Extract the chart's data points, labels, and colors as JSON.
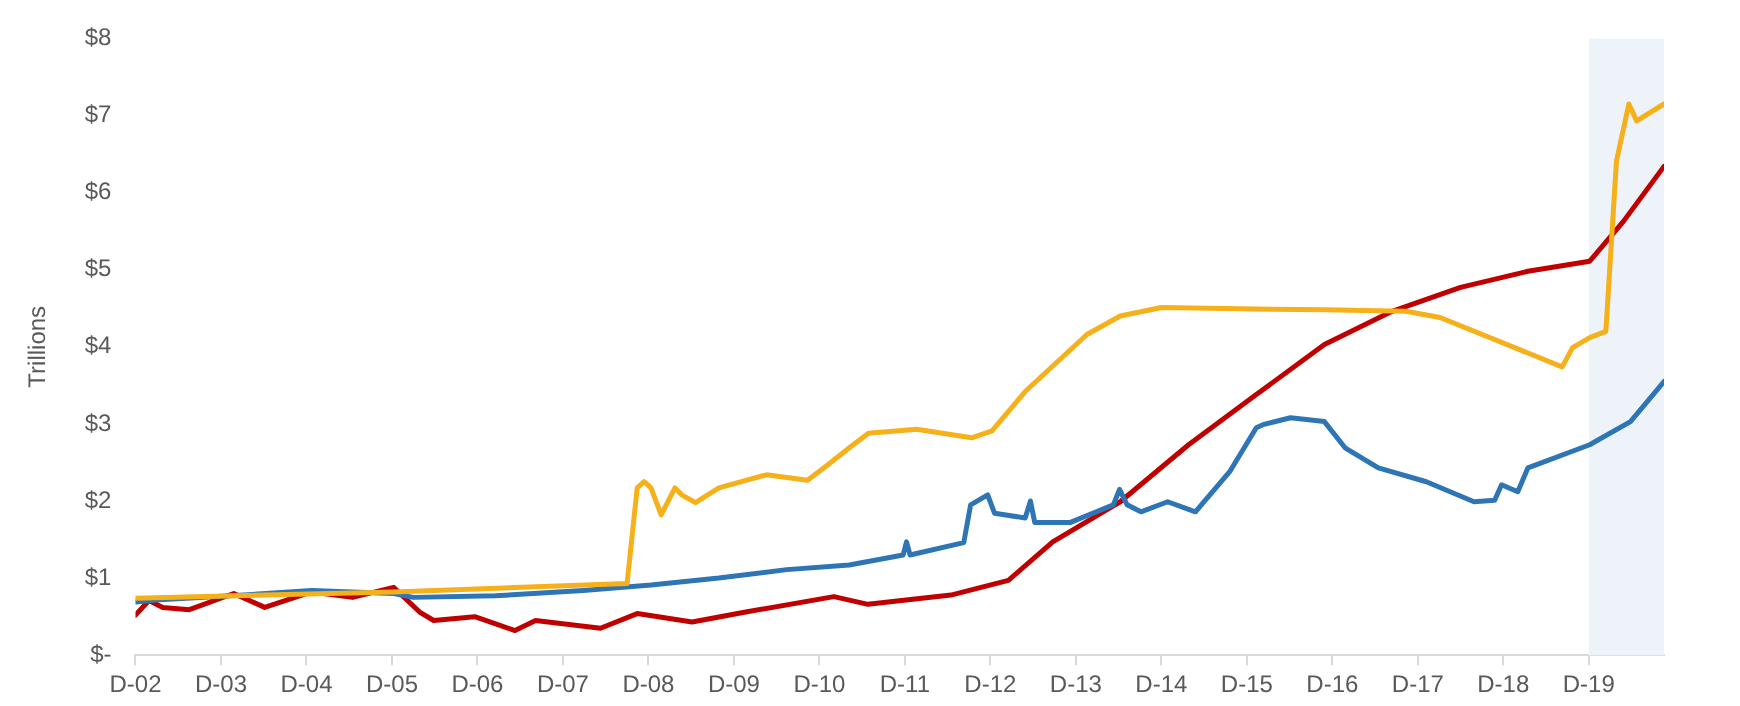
{
  "chart_data": {
    "type": "line",
    "ylabel": "Trillions",
    "xlim": [
      "2002-12-01",
      "2020-10-18"
    ],
    "xticks": [
      {
        "value": "2002-12-01",
        "label": "D-02"
      },
      {
        "value": "2003-12-01",
        "label": "D-03"
      },
      {
        "value": "2004-12-01",
        "label": "D-04"
      },
      {
        "value": "2005-12-01",
        "label": "D-05"
      },
      {
        "value": "2006-12-01",
        "label": "D-06"
      },
      {
        "value": "2007-12-01",
        "label": "D-07"
      },
      {
        "value": "2008-12-01",
        "label": "D-08"
      },
      {
        "value": "2009-12-01",
        "label": "D-09"
      },
      {
        "value": "2010-12-01",
        "label": "D-10"
      },
      {
        "value": "2011-12-01",
        "label": "D-11"
      },
      {
        "value": "2012-12-01",
        "label": "D-12"
      },
      {
        "value": "2013-12-01",
        "label": "D-13"
      },
      {
        "value": "2014-12-01",
        "label": "D-14"
      },
      {
        "value": "2015-12-01",
        "label": "D-15"
      },
      {
        "value": "2016-12-01",
        "label": "D-16"
      },
      {
        "value": "2017-12-01",
        "label": "D-17"
      },
      {
        "value": "2018-12-01",
        "label": "D-18"
      },
      {
        "value": "2019-12-01",
        "label": "D-19"
      }
    ],
    "ylim": [
      0,
      8
    ],
    "yticks": [
      {
        "value": 0,
        "label": "$-"
      },
      {
        "value": 1,
        "label": "$1"
      },
      {
        "value": 2,
        "label": "$2"
      },
      {
        "value": 3,
        "label": "$3"
      },
      {
        "value": 4,
        "label": "$4"
      },
      {
        "value": 5,
        "label": "$5"
      },
      {
        "value": 6,
        "label": "$6"
      },
      {
        "value": 7,
        "label": "$7"
      },
      {
        "value": 8,
        "label": "$8"
      }
    ],
    "grid": false,
    "legend": false,
    "marker": "none",
    "line_style": "solid",
    "bands": [
      {
        "axis": "x",
        "from": "2019-12-01",
        "to": "2020-10-18",
        "color": "#eef3fa"
      }
    ],
    "series": [
      {
        "color": "#f5b01a",
        "x": [
          "2002-12-01",
          "2005-12-08",
          "2008-09-01",
          "2008-10-14",
          "2008-11-13",
          "2008-12-12",
          "2009-01-25",
          "2009-03-23",
          "2009-04-21",
          "2009-06-19",
          "2009-09-28",
          "2010-04-18",
          "2010-10-11",
          "2011-01-07",
          "2011-04-07",
          "2011-06-28",
          "2012-01-21",
          "2012-09-12",
          "2012-12-08",
          "2013-04-28",
          "2014-01-18",
          "2014-06-08",
          "2014-12-01",
          "2016-01-11",
          "2016-10-28",
          "2017-10-11",
          "2018-03-05",
          "2019-08-09",
          "2019-09-23",
          "2019-12-05",
          "2020-02-13",
          "2020-03-28",
          "2020-05-20",
          "2020-06-23",
          "2020-10-18"
        ],
        "values": [
          0.74,
          0.82,
          0.93,
          2.17,
          2.25,
          2.17,
          1.82,
          2.17,
          2.08,
          1.98,
          2.17,
          2.34,
          2.27,
          2.47,
          2.69,
          2.88,
          2.93,
          2.82,
          2.91,
          3.42,
          4.16,
          4.4,
          4.51,
          4.49,
          4.48,
          4.46,
          4.38,
          3.74,
          3.99,
          4.12,
          4.2,
          6.41,
          7.15,
          6.93,
          7.15
        ]
      },
      {
        "color": "#2e75b6",
        "x": [
          "2002-12-01",
          "2003-03-12",
          "2004-03-08",
          "2004-12-23",
          "2005-12-08",
          "2006-03-01",
          "2007-02-17",
          "2008-02-27",
          "2008-12-12",
          "2009-09-28",
          "2010-07-14",
          "2011-04-07",
          "2011-11-24",
          "2011-12-08",
          "2011-12-23",
          "2012-08-09",
          "2012-09-08",
          "2012-11-20",
          "2012-12-19",
          "2013-04-28",
          "2013-05-20",
          "2013-06-08",
          "2013-11-06",
          "2014-05-09",
          "2014-06-05",
          "2014-07-07",
          "2014-09-05",
          "2014-12-28",
          "2015-04-25",
          "2015-09-19",
          "2016-01-11",
          "2016-02-09",
          "2016-06-05",
          "2016-10-28",
          "2017-01-25",
          "2017-06-15",
          "2018-01-07",
          "2018-07-28",
          "2018-10-25",
          "2018-11-24",
          "2019-02-02",
          "2019-03-15",
          "2019-12-05",
          "2020-05-27",
          "2020-10-18"
        ],
        "values": [
          0.69,
          0.72,
          0.78,
          0.84,
          0.8,
          0.75,
          0.77,
          0.84,
          0.91,
          1.0,
          1.11,
          1.17,
          1.3,
          1.47,
          1.3,
          1.46,
          1.95,
          2.08,
          1.84,
          1.78,
          2.0,
          1.72,
          1.72,
          1.95,
          2.15,
          1.95,
          1.86,
          1.99,
          1.86,
          2.38,
          2.95,
          2.99,
          3.08,
          3.03,
          2.69,
          2.43,
          2.25,
          1.99,
          2.01,
          2.21,
          2.12,
          2.43,
          2.73,
          3.03,
          3.55
        ]
      },
      {
        "color": "#c00000",
        "x": [
          "2002-12-01",
          "2003-01-28",
          "2003-03-26",
          "2003-07-18",
          "2004-01-25",
          "2004-06-05",
          "2004-12-23",
          "2005-06-15",
          "2005-12-08",
          "2006-03-28",
          "2006-05-27",
          "2006-11-20",
          "2007-05-09",
          "2007-08-06",
          "2008-05-09",
          "2008-10-14",
          "2009-06-05",
          "2010-01-21",
          "2011-02-02",
          "2011-06-26",
          "2012-06-15",
          "2013-02-17",
          "2013-08-24",
          "2014-06-08",
          "2015-03-26",
          "2016-01-11",
          "2016-10-28",
          "2017-08-13",
          "2018-06-01",
          "2019-03-15",
          "2019-12-05",
          "2020-04-28",
          "2020-10-18"
        ],
        "values": [
          0.52,
          0.71,
          0.62,
          0.59,
          0.8,
          0.62,
          0.82,
          0.75,
          0.88,
          0.56,
          0.45,
          0.5,
          0.32,
          0.45,
          0.35,
          0.54,
          0.43,
          0.56,
          0.76,
          0.66,
          0.78,
          0.97,
          1.47,
          1.99,
          2.73,
          3.38,
          4.03,
          4.46,
          4.77,
          4.98,
          5.11,
          5.63,
          6.34
        ]
      }
    ]
  }
}
